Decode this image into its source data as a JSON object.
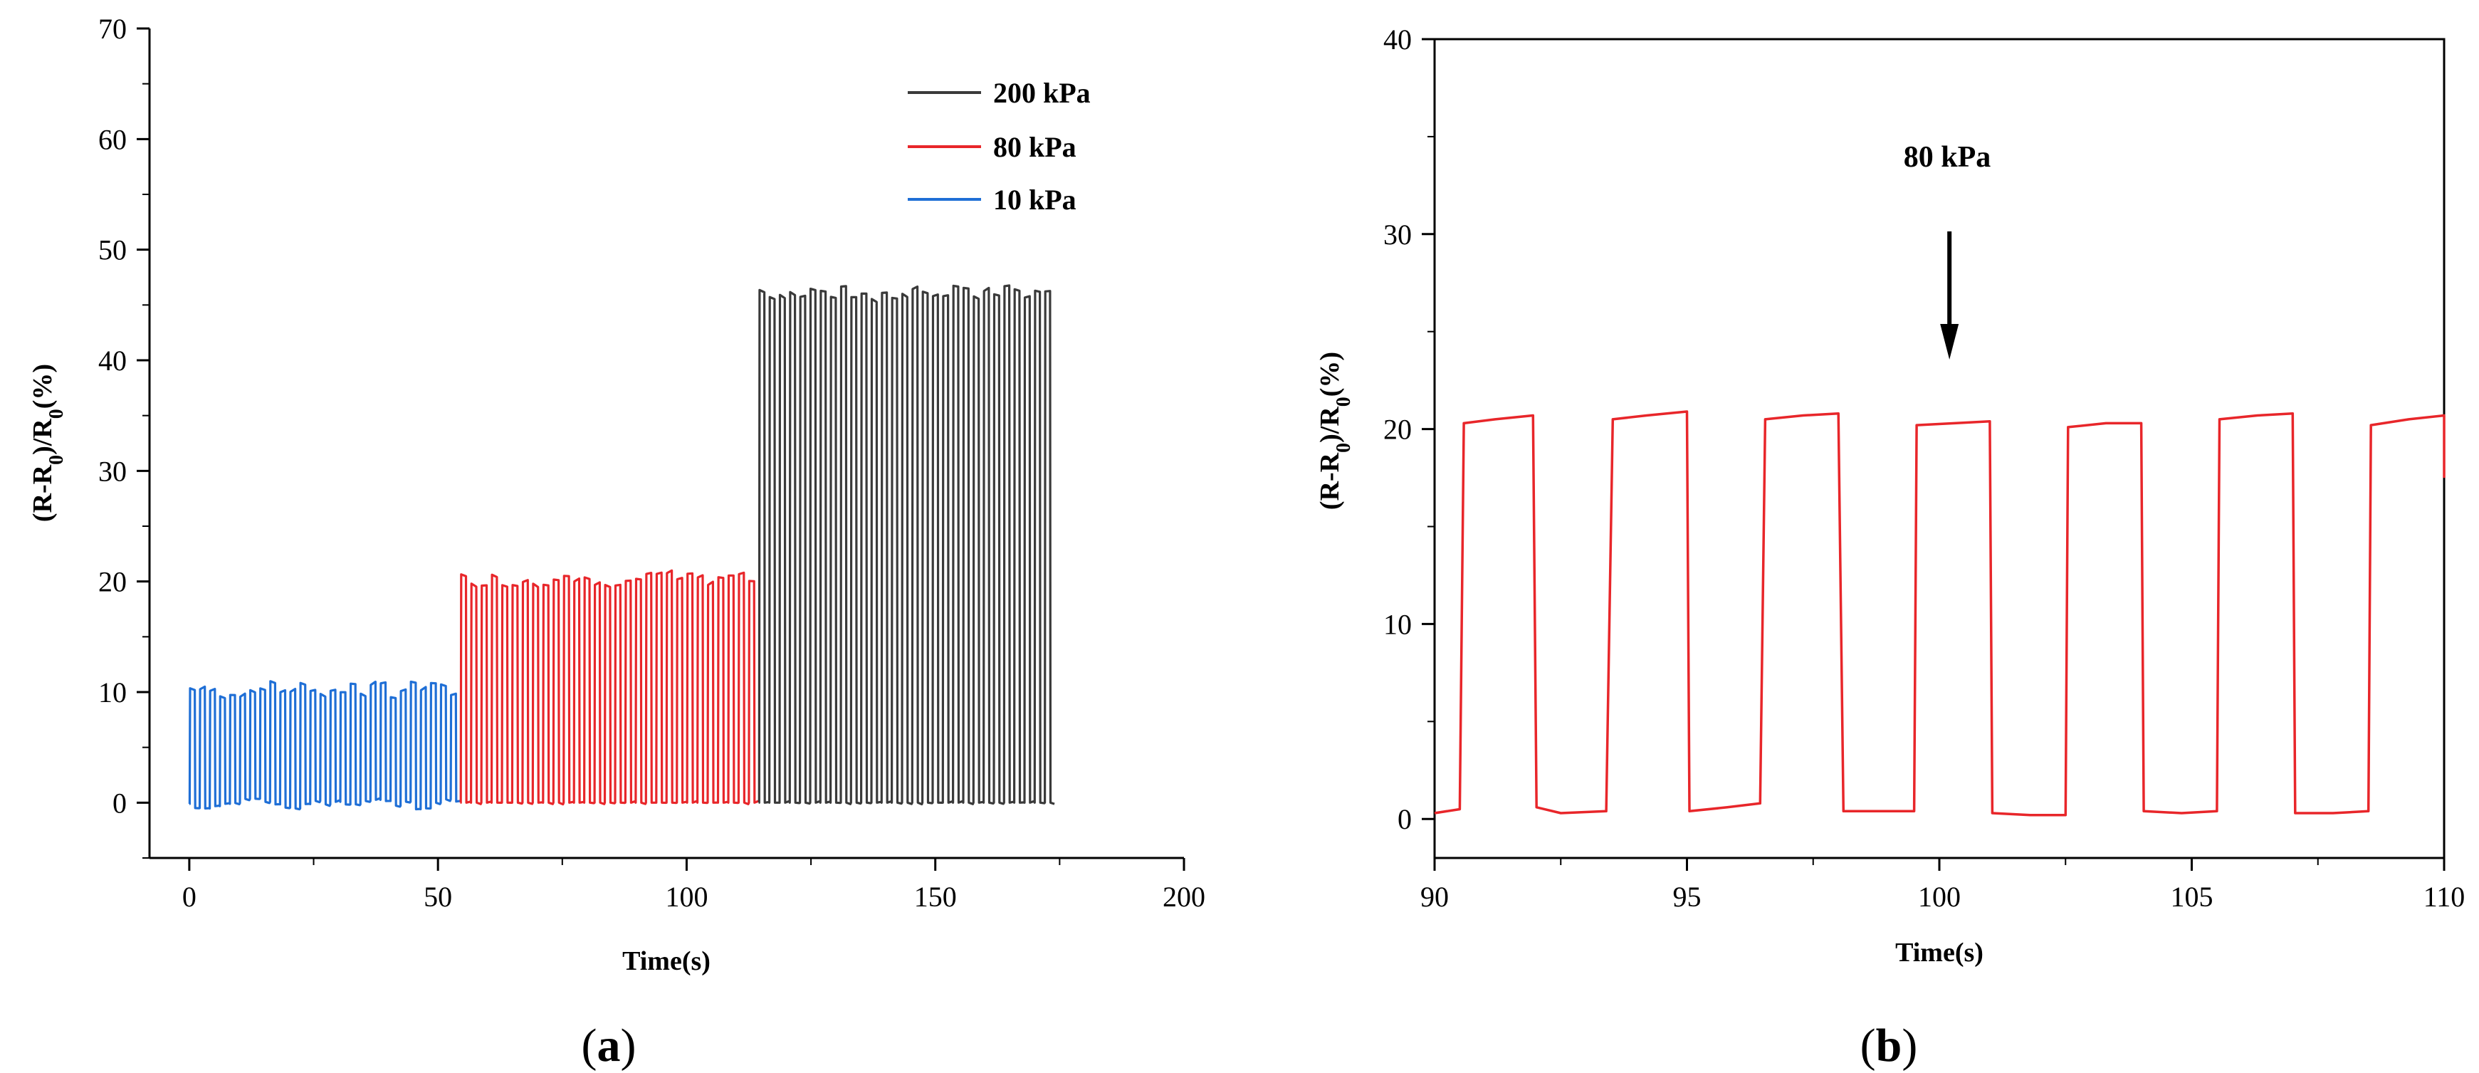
{
  "chart_data": [
    {
      "type": "line",
      "panel_label": "(a)",
      "panel_letter": "a",
      "xlabel": "Time(s)",
      "ylabel": "(R-R0)/R0(%)",
      "ylabel_parts": {
        "pre": "(R-R",
        "sub0": "0",
        "mid": ")/R",
        "sub1": "0",
        "post": "(%)"
      },
      "xlim": [
        -8,
        200
      ],
      "ylim": [
        -5,
        70
      ],
      "xticks": [
        0,
        50,
        100,
        150,
        200
      ],
      "yticks": [
        0,
        10,
        20,
        30,
        40,
        50,
        60,
        70
      ],
      "legend_position": "top-right",
      "series": [
        {
          "name": "200 kPa",
          "color": "#3a3a3a",
          "t_start": 114.5,
          "t_end": 174,
          "n_cycles": 29,
          "high": [
            45.5,
            46.8
          ],
          "low": 0
        },
        {
          "name": "80 kPa",
          "color": "#e8262a",
          "t_start": 54.5,
          "t_end": 114.5,
          "n_cycles": 29,
          "high": [
            19.6,
            20.8
          ],
          "low": 0
        },
        {
          "name": "10 kPa",
          "color": "#1f6fd6",
          "t_start": 0,
          "t_end": 54.5,
          "n_cycles": 27,
          "high": [
            9.5,
            11.0
          ],
          "low": [
            -0.6,
            0.4
          ]
        }
      ]
    },
    {
      "type": "line",
      "panel_label": "(b)",
      "panel_letter": "b",
      "xlabel": "Time(s)",
      "ylabel": "(R-R0)/R0(%)",
      "ylabel_parts": {
        "pre": "(R-R",
        "sub0": "0",
        "mid": ")/R",
        "sub1": "0",
        "post": "(%)"
      },
      "xlim": [
        90,
        110
      ],
      "ylim": [
        -2,
        40
      ],
      "xticks": [
        90,
        95,
        100,
        105,
        110
      ],
      "yticks": [
        0,
        10,
        20,
        30,
        40
      ],
      "annotation": "80 kPa",
      "annotation_arrow_x": 100.2,
      "series": [
        {
          "name": "80 kPa",
          "color": "#e8262a",
          "points": [
            [
              90,
              0.3
            ],
            [
              90.5,
              0.5
            ],
            [
              90.58,
              20.3
            ],
            [
              91.2,
              20.5
            ],
            [
              91.95,
              20.7
            ],
            [
              92.02,
              0.6
            ],
            [
              92.5,
              0.3
            ],
            [
              93.4,
              0.4
            ],
            [
              93.53,
              20.5
            ],
            [
              94.2,
              20.7
            ],
            [
              95,
              20.9
            ],
            [
              95.05,
              0.4
            ],
            [
              95.8,
              0.6
            ],
            [
              96.45,
              0.8
            ],
            [
              96.55,
              20.5
            ],
            [
              97.3,
              20.7
            ],
            [
              98,
              20.8
            ],
            [
              98.1,
              0.4
            ],
            [
              98.8,
              0.4
            ],
            [
              99.5,
              0.4
            ],
            [
              99.55,
              20.2
            ],
            [
              100.3,
              20.3
            ],
            [
              101,
              20.4
            ],
            [
              101.05,
              0.3
            ],
            [
              101.8,
              0.2
            ],
            [
              102.5,
              0.2
            ],
            [
              102.55,
              20.1
            ],
            [
              103.3,
              20.3
            ],
            [
              104,
              20.3
            ],
            [
              104.05,
              0.4
            ],
            [
              104.8,
              0.3
            ],
            [
              105.5,
              0.4
            ],
            [
              105.55,
              20.5
            ],
            [
              106.3,
              20.7
            ],
            [
              107,
              20.8
            ],
            [
              107.05,
              0.3
            ],
            [
              107.8,
              0.3
            ],
            [
              108.5,
              0.4
            ],
            [
              108.55,
              20.2
            ],
            [
              109.3,
              20.5
            ],
            [
              110,
              20.7
            ],
            [
              110,
              17.5
            ]
          ]
        }
      ]
    }
  ]
}
